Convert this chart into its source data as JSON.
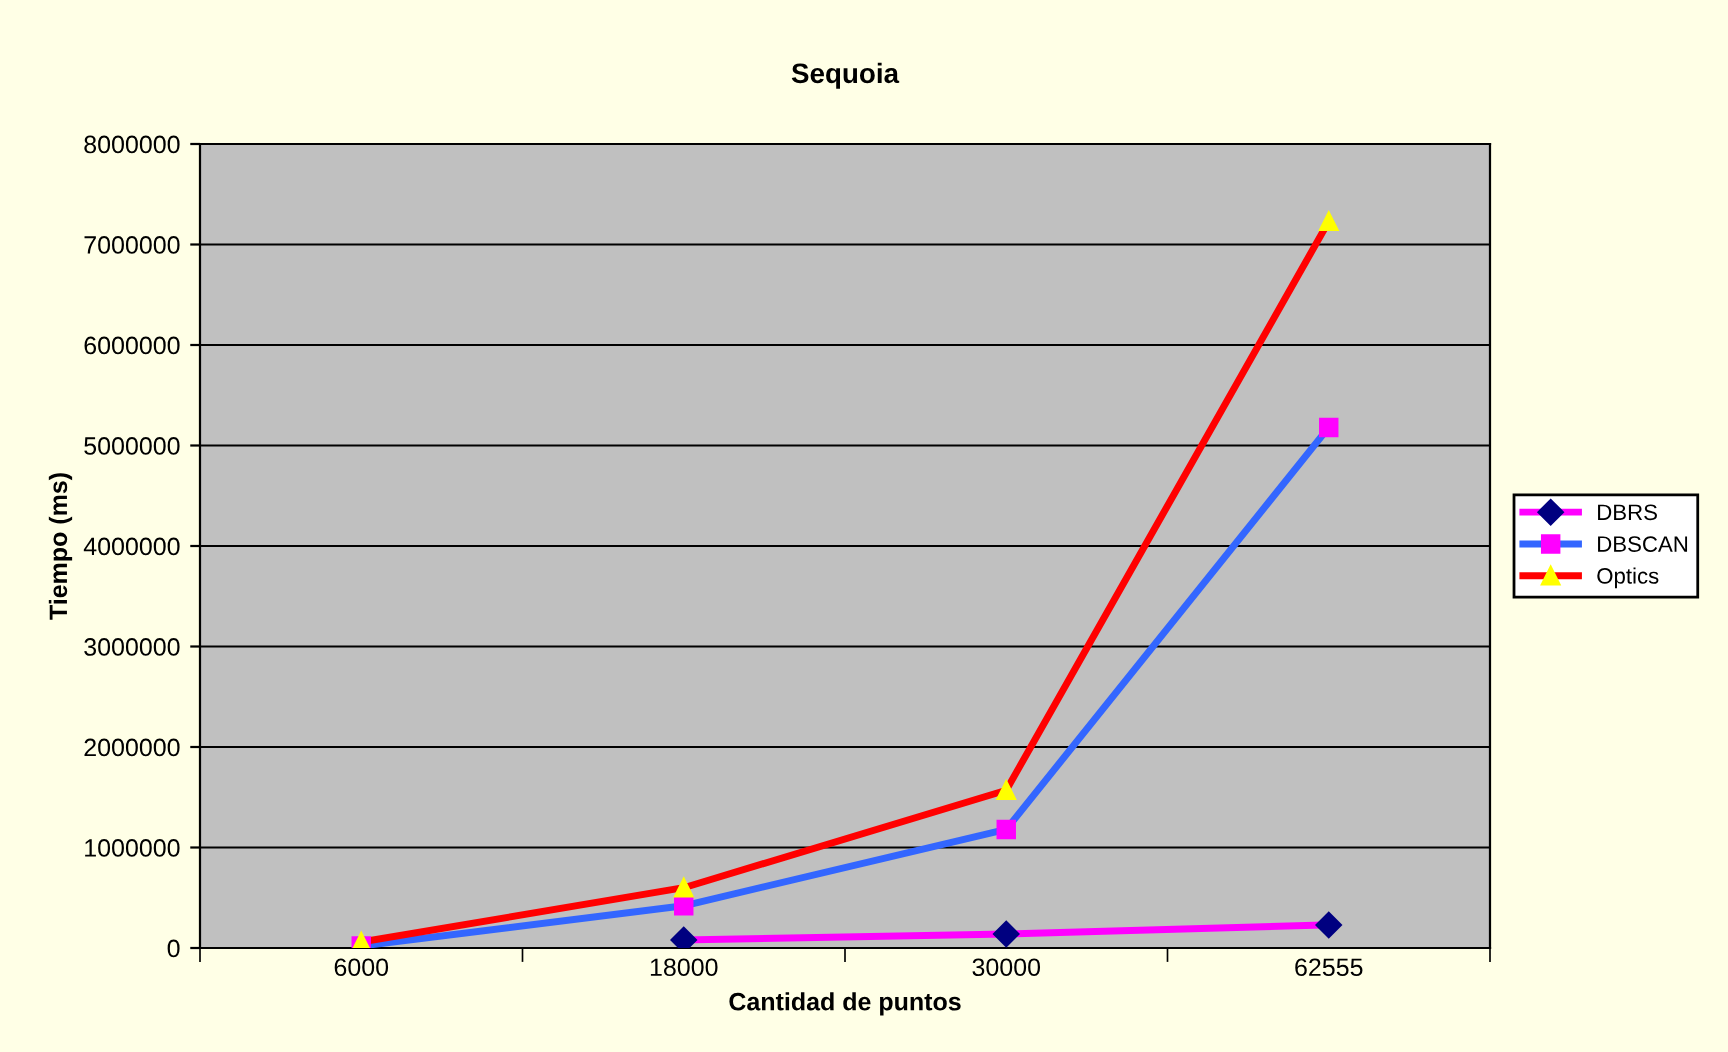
{
  "chart_data": {
    "type": "line",
    "title": "Sequoia",
    "xlabel": "Cantidad de puntos",
    "ylabel": "Tiempo (ms)",
    "categories": [
      "6000",
      "18000",
      "30000",
      "62555"
    ],
    "series": [
      {
        "name": "DBRS",
        "color": "#ff00ff",
        "colors": [
          "#000080",
          "#000080",
          "#000080",
          "#000080"
        ],
        "marker": "diamond",
        "values": [
          null,
          80000,
          140000,
          230000
        ]
      },
      {
        "name": "DBSCAN",
        "color": "#3366ff",
        "colors": [
          "#ff00ff",
          "#ff00ff",
          "#ff00ff",
          "#ff00ff"
        ],
        "marker": "square",
        "values": [
          20000,
          420000,
          1180000,
          5180000
        ]
      },
      {
        "name": "Optics",
        "color": "#ff0000",
        "colors": [
          "#ffff00",
          "#ffff00",
          "#ffff00",
          "#ffff00"
        ],
        "marker": "triangle",
        "values": [
          60000,
          600000,
          1570000,
          7230000
        ]
      }
    ],
    "ylim": [
      0,
      8000000
    ],
    "yticks": [
      0,
      1000000,
      2000000,
      3000000,
      4000000,
      5000000,
      6000000,
      7000000,
      8000000
    ],
    "grid": "y",
    "legend": "right"
  }
}
